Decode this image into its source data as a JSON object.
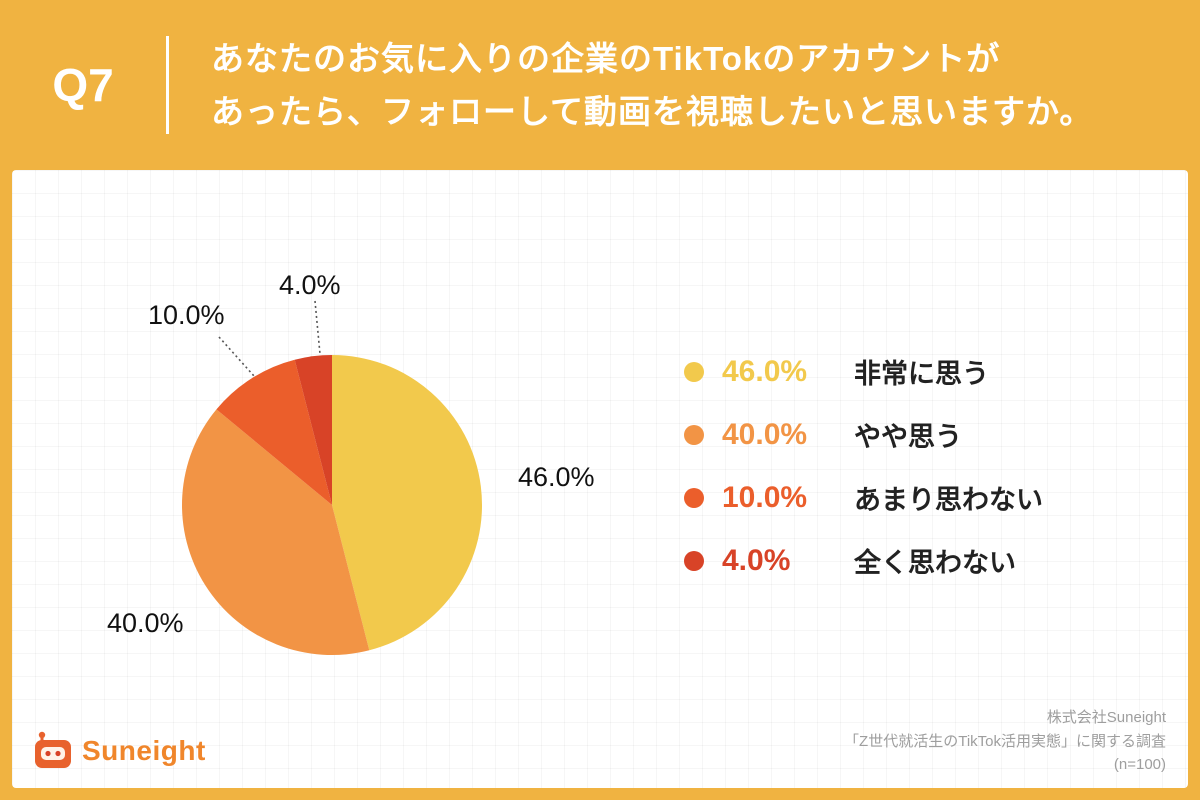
{
  "header": {
    "question_label": "Q7",
    "title_lines": [
      "あなたのお気に入りの企業のTikTokのアカウントが",
      "あったら、フォローして動画を視聴したいと思いますか。"
    ]
  },
  "chart_data": {
    "type": "pie",
    "labels": [
      "非常に思う",
      "やや思う",
      "あまり思わない",
      "全く思わない"
    ],
    "values": [
      46.0,
      40.0,
      10.0,
      4.0
    ],
    "value_labels": [
      "46.0%",
      "40.0%",
      "10.0%",
      "4.0%"
    ],
    "colors": [
      "#F2C94C",
      "#F29445",
      "#EB5E2B",
      "#D84327"
    ],
    "start_angle_deg": 0,
    "direction": "clockwise",
    "legend_position": "right"
  },
  "footer": {
    "logo_text": "Suneight",
    "credit_lines": [
      "株式会社Suneight",
      "「Z世代就活生のTikTok活用実態」に関する調査",
      "(n=100)"
    ]
  },
  "colors": {
    "background": "#F0B341",
    "card": "#FFFFFF",
    "header_text": "#FFFFFF",
    "legend_label": "#222222",
    "credit_text": "#9E9E9E",
    "logo_orange": "#F0862B"
  }
}
